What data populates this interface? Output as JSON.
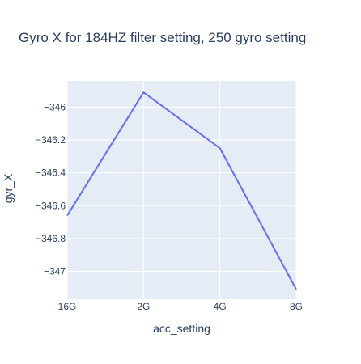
{
  "colors": {
    "plot_background": "#E5ECF6",
    "grid": "#ffffff",
    "line": "#636EFA",
    "text": "#2a3f5f"
  },
  "chart_data": {
    "type": "line",
    "title": "Gyro X for 184HZ filter setting, 250 gyro setting",
    "xlabel": "acc_setting",
    "ylabel": "gyr_X",
    "categories": [
      "16G",
      "2G",
      "4G",
      "8G"
    ],
    "series": [
      {
        "values": [
          -346.66,
          -345.91,
          -346.25,
          -347.11
        ]
      }
    ],
    "ylim": [
      -347.17,
      -345.84
    ],
    "yticks": [
      -346,
      -346.2,
      -346.4,
      -346.6,
      -346.8,
      -347
    ],
    "ytick_labels": [
      "−346",
      "−346.2",
      "−346.4",
      "−346.6",
      "−346.8",
      "−347"
    ],
    "grid": true,
    "legend": "none"
  }
}
